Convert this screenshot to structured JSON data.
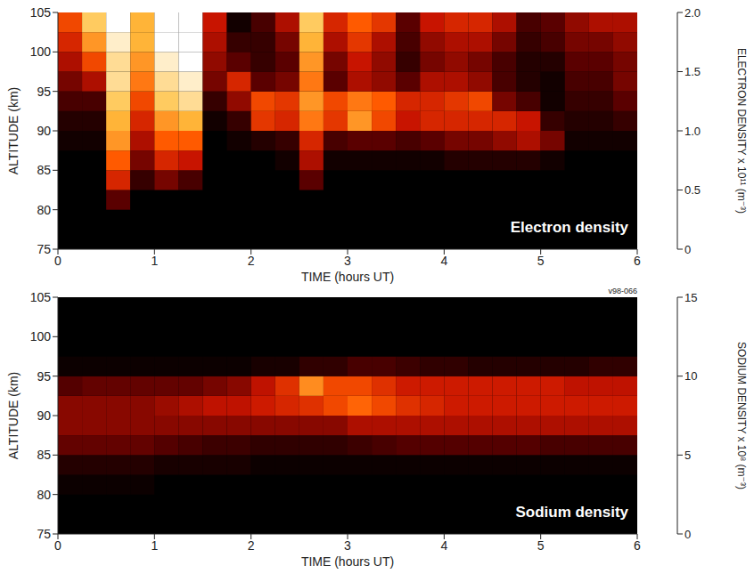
{
  "chart_data": [
    {
      "type": "heatmap",
      "annotations": [
        "Electron density"
      ],
      "x_label": "TIME (hours UT)",
      "y_label": "ALTITUDE (km)",
      "xlim": [
        0,
        6
      ],
      "xticks": [
        0,
        1,
        2,
        3,
        4,
        5,
        6
      ],
      "ylim": [
        75,
        105
      ],
      "yticks": [
        75,
        80,
        85,
        90,
        95,
        100,
        105
      ],
      "grid": false,
      "x": [
        0.125,
        0.375,
        0.625,
        0.875,
        1.125,
        1.375,
        1.625,
        1.875,
        2.125,
        2.375,
        2.625,
        2.875,
        3.125,
        3.375,
        3.625,
        3.875,
        4.125,
        4.375,
        4.625,
        4.875,
        5.125,
        5.375,
        5.625,
        5.875
      ],
      "y": [
        76.25,
        78.75,
        81.25,
        83.75,
        86.25,
        88.75,
        91.25,
        93.75,
        96.25,
        98.75,
        101.25,
        103.75
      ],
      "cells": [
        [
          0,
          0,
          0,
          0,
          0,
          0,
          0,
          0,
          0,
          0,
          0,
          0,
          0,
          0,
          0,
          0,
          0,
          0,
          0,
          0,
          0,
          0,
          0,
          0
        ],
        [
          0,
          0,
          0,
          0,
          0,
          0,
          0,
          0,
          0,
          0,
          0,
          0,
          0,
          0,
          0,
          0,
          0,
          0,
          0,
          0,
          0,
          0,
          0,
          0
        ],
        [
          0,
          0,
          0.5,
          0,
          0,
          0,
          0,
          0,
          0,
          0,
          0,
          0,
          0,
          0,
          0,
          0,
          0,
          0,
          0,
          0,
          0,
          0,
          0,
          0
        ],
        [
          0,
          0,
          1.0,
          0.3,
          0.6,
          0.4,
          0,
          0,
          0,
          0,
          0.5,
          0,
          0,
          0,
          0,
          0,
          0,
          0,
          0,
          0,
          0,
          0,
          0,
          0
        ],
        [
          0,
          0,
          1.3,
          0.6,
          1.0,
          0.9,
          0,
          0,
          0,
          0.1,
          0.8,
          0.1,
          0.1,
          0.1,
          0.1,
          0.1,
          0.2,
          0.2,
          0.2,
          0.2,
          0.1,
          0,
          0,
          0
        ],
        [
          0.1,
          0.1,
          1.5,
          0.8,
          1.3,
          1.3,
          0,
          0.1,
          0.2,
          0.3,
          1.0,
          0.4,
          0.5,
          0.5,
          0.4,
          0.5,
          0.6,
          0.6,
          0.7,
          0.8,
          0.6,
          0.1,
          0.1,
          0.1
        ],
        [
          0.2,
          0.2,
          1.6,
          1.0,
          1.5,
          1.6,
          0.1,
          0.3,
          1.1,
          1.0,
          1.4,
          1.1,
          1.5,
          1.2,
          0.9,
          1.0,
          1.0,
          1.0,
          1.0,
          0.9,
          0.3,
          0.2,
          0.2,
          0.3
        ],
        [
          0.4,
          0.4,
          1.7,
          1.2,
          1.7,
          1.8,
          0.3,
          0.7,
          1.2,
          1.1,
          1.5,
          1.2,
          1.4,
          1.3,
          1.0,
          1.0,
          1.1,
          1.2,
          0.6,
          0.4,
          0.1,
          0.3,
          0.3,
          0.5
        ],
        [
          0.6,
          0.8,
          1.8,
          1.4,
          1.8,
          1.9,
          0.6,
          1.0,
          0.5,
          0.6,
          1.4,
          0.5,
          0.8,
          0.7,
          0.5,
          0.8,
          0.8,
          0.7,
          0.4,
          0.2,
          0.1,
          0.4,
          0.4,
          0.6
        ],
        [
          0.8,
          1.2,
          1.8,
          1.5,
          1.9,
          2.0,
          0.7,
          0.5,
          0.3,
          0.5,
          1.5,
          0.6,
          0.9,
          0.7,
          0.3,
          0.6,
          0.7,
          0.6,
          0.4,
          0.2,
          0.2,
          0.5,
          0.5,
          0.6
        ],
        [
          1.0,
          1.5,
          1.9,
          1.6,
          2.0,
          2.0,
          0.8,
          0.3,
          0.3,
          0.6,
          1.6,
          0.8,
          1.1,
          0.8,
          0.4,
          0.7,
          0.8,
          0.8,
          0.6,
          0.3,
          0.4,
          0.6,
          0.6,
          0.7
        ],
        [
          1.2,
          1.7,
          2.0,
          1.6,
          2.0,
          2.0,
          0.9,
          0.1,
          0.4,
          0.8,
          1.7,
          1.0,
          1.3,
          1.1,
          0.5,
          0.9,
          1.0,
          1.0,
          0.8,
          0.4,
          0.5,
          0.7,
          0.8,
          0.8
        ]
      ],
      "colorbar": {
        "label": "ELECTRON DENSITY x 10¹¹ (m⁻³)",
        "range": [
          0,
          2
        ],
        "ticks": [
          0,
          0.5,
          {
            "value": 1,
            "label": "1.0"
          },
          1.5,
          {
            "value": 2,
            "label": "2.0"
          }
        ]
      }
    },
    {
      "type": "heatmap",
      "annotations": [
        "Sodium density",
        "v98-066"
      ],
      "x_label": "TIME (hours UT)",
      "y_label": "ALTITUDE (km)",
      "xlim": [
        0,
        6
      ],
      "xticks": [
        0,
        1,
        2,
        3,
        4,
        5,
        6
      ],
      "ylim": [
        75,
        105
      ],
      "yticks": [
        75,
        80,
        85,
        90,
        95,
        100,
        105
      ],
      "grid": false,
      "x": [
        0.125,
        0.375,
        0.625,
        0.875,
        1.125,
        1.375,
        1.625,
        1.875,
        2.125,
        2.375,
        2.625,
        2.875,
        3.125,
        3.375,
        3.625,
        3.875,
        4.125,
        4.375,
        4.625,
        4.875,
        5.125,
        5.375,
        5.625,
        5.875
      ],
      "y": [
        76.25,
        78.75,
        81.25,
        83.75,
        86.25,
        88.75,
        91.25,
        93.75,
        96.25,
        98.75,
        101.25,
        103.75
      ],
      "cells": [
        [
          0,
          0,
          0,
          0,
          0,
          0,
          0,
          0,
          0,
          0,
          0,
          0,
          0,
          0,
          0,
          0,
          0,
          0,
          0,
          0,
          0,
          0,
          0,
          0
        ],
        [
          0,
          0,
          0,
          0,
          0,
          0,
          0,
          0,
          0,
          0,
          0,
          0,
          0,
          0,
          0,
          0,
          0,
          0,
          0,
          0,
          0,
          0,
          0,
          0
        ],
        [
          0.5,
          0.5,
          0.5,
          0.5,
          0,
          0,
          0,
          0,
          0,
          0,
          0,
          0,
          0,
          0,
          0,
          0,
          0,
          0,
          0,
          0,
          0,
          0,
          0,
          0
        ],
        [
          1.5,
          1.5,
          1.5,
          1.5,
          1,
          1,
          1,
          1,
          0.5,
          0.5,
          0.5,
          0.5,
          0.5,
          0.5,
          0.5,
          0.5,
          0.5,
          0.5,
          0.5,
          0.5,
          0.5,
          0.5,
          0.5,
          0.5
        ],
        [
          4,
          4,
          4,
          4,
          3.5,
          3,
          2.5,
          2.5,
          2,
          2,
          2,
          2,
          2.5,
          3,
          3.5,
          3.5,
          3.5,
          3.5,
          3.5,
          3.5,
          3,
          3,
          3,
          3
        ],
        [
          5,
          5,
          5,
          5,
          5,
          5,
          5,
          5,
          5,
          5,
          5,
          5,
          6,
          6,
          6,
          6,
          6,
          6,
          6,
          6,
          6,
          6,
          6,
          6
        ],
        [
          5,
          5,
          5,
          5,
          5.5,
          6,
          6.5,
          6.5,
          7,
          7.5,
          8,
          9,
          10,
          9,
          8,
          7.5,
          7,
          7,
          7,
          7,
          7,
          7,
          7,
          7
        ],
        [
          3.5,
          4,
          4,
          4,
          4,
          4,
          4.5,
          5,
          6.5,
          8,
          11,
          9,
          9,
          8,
          7,
          7,
          7,
          7,
          7,
          7,
          7,
          6.5,
          6.5,
          6.5
        ],
        [
          0.5,
          0.5,
          0.5,
          0.5,
          0.5,
          0.5,
          0.5,
          0.5,
          1,
          1,
          2,
          2,
          3,
          3,
          2.5,
          2,
          2,
          1.5,
          1.5,
          1.5,
          1.5,
          1.5,
          2,
          2
        ],
        [
          0,
          0,
          0,
          0,
          0,
          0,
          0,
          0,
          0,
          0,
          0,
          0,
          0,
          0,
          0,
          0,
          0,
          0,
          0,
          0,
          0,
          0,
          0,
          0
        ],
        [
          0,
          0,
          0,
          0,
          0,
          0,
          0,
          0,
          0,
          0,
          0,
          0,
          0,
          0,
          0,
          0,
          0,
          0,
          0,
          0,
          0,
          0,
          0,
          0
        ],
        [
          0,
          0,
          0,
          0,
          0,
          0,
          0,
          0,
          0,
          0,
          0,
          0,
          0,
          0,
          0,
          0,
          0,
          0,
          0,
          0,
          0,
          0,
          0,
          0
        ]
      ],
      "colorbar": {
        "label": "SODIUM DENSITY x 10⁸ (m⁻³)",
        "range": [
          0,
          15
        ],
        "ticks": [
          0,
          5,
          10,
          15
        ]
      }
    }
  ]
}
